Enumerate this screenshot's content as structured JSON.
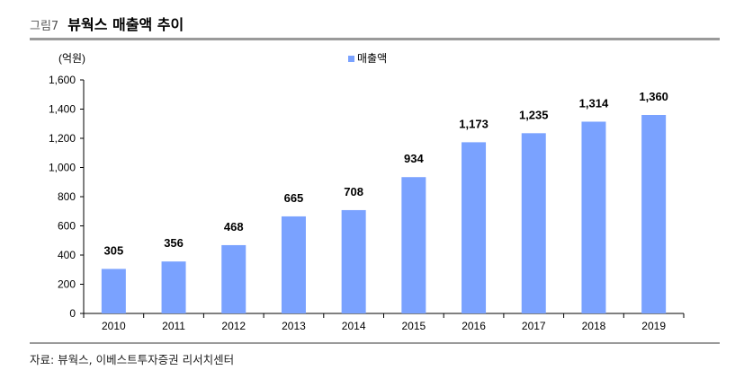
{
  "figure": {
    "number": "그림7",
    "title": "뷰웍스 매출액 추이",
    "source": "자료: 뷰웍스, 이베스트투자증권 리서치센터"
  },
  "chart_data": {
    "type": "bar",
    "title": "",
    "unit_label": "(억원)",
    "categories": [
      "2010",
      "2011",
      "2012",
      "2013",
      "2014",
      "2015",
      "2016",
      "2017",
      "2018",
      "2019"
    ],
    "series": [
      {
        "name": "매출액",
        "values": [
          305,
          356,
          468,
          665,
          708,
          934,
          1173,
          1235,
          1314,
          1360
        ],
        "data_labels": [
          "305",
          "356",
          "468",
          "665",
          "708",
          "934",
          "1,173",
          "1,235",
          "1,314",
          "1,360"
        ]
      }
    ],
    "ylim": [
      0,
      1600
    ],
    "yticks": [
      0,
      200,
      400,
      600,
      800,
      1000,
      1200,
      1400,
      1600
    ],
    "ytick_labels": [
      "0",
      "200",
      "400",
      "600",
      "800",
      "1,000",
      "1,200",
      "1,400",
      "1,600"
    ],
    "legend_position": "top-center",
    "grid": false,
    "colors": {
      "bar": "#7aa2ff",
      "axis": "#000000"
    }
  }
}
